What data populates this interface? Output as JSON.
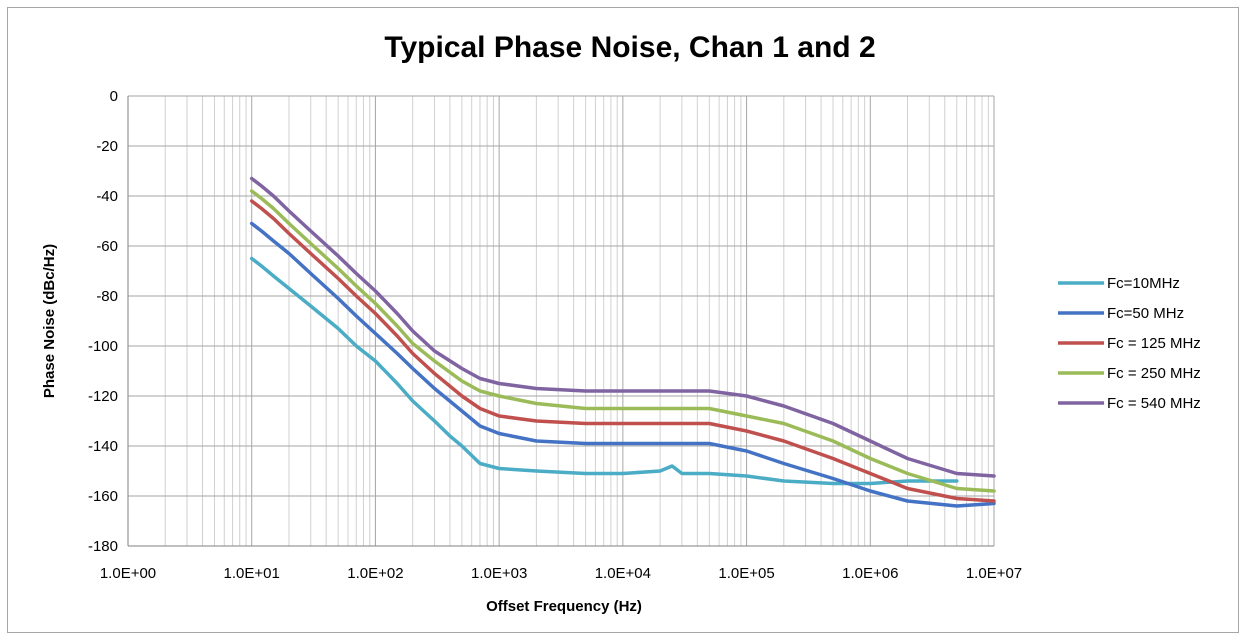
{
  "chart_data": {
    "type": "line",
    "title": "Typical Phase Noise, Chan 1 and 2",
    "xlabel": "Offset Frequency (Hz)",
    "ylabel": "Phase Noise (dBc/Hz)",
    "x_scale": "log",
    "xlim": [
      1,
      10000000
    ],
    "ylim": [
      -180,
      0
    ],
    "x_ticks": [
      "1.0E+00",
      "1.0E+01",
      "1.0E+02",
      "1.0E+03",
      "1.0E+04",
      "1.0E+05",
      "1.0E+06",
      "1.0E+07"
    ],
    "y_ticks": [
      "0",
      "-20",
      "-40",
      "-60",
      "-80",
      "-100",
      "-120",
      "-140",
      "-160",
      "-180"
    ],
    "grid": true,
    "legend_position": "right",
    "series": [
      {
        "name": "Fc=10MHz",
        "color": "#4bacc6",
        "x": [
          10,
          12,
          15,
          20,
          30,
          50,
          70,
          100,
          150,
          200,
          300,
          400,
          500,
          700,
          1000,
          2000,
          5000,
          10000,
          20000,
          25000,
          30000,
          50000,
          100000,
          200000,
          500000,
          1000000,
          2000000,
          5000000
        ],
        "y": [
          -65,
          -68,
          -72,
          -77,
          -84,
          -93,
          -100,
          -106,
          -115,
          -122,
          -130,
          -136,
          -140,
          -147,
          -149,
          -150,
          -151,
          -151,
          -150,
          -148,
          -151,
          -151,
          -152,
          -154,
          -155,
          -155,
          -154,
          -154
        ]
      },
      {
        "name": "Fc=50 MHz",
        "color": "#4472c4",
        "x": [
          10,
          12,
          15,
          20,
          30,
          50,
          70,
          100,
          150,
          200,
          300,
          500,
          700,
          1000,
          2000,
          5000,
          10000,
          20000,
          50000,
          100000,
          200000,
          500000,
          1000000,
          2000000,
          5000000,
          10000000
        ],
        "y": [
          -51,
          -54,
          -58,
          -63,
          -71,
          -81,
          -88,
          -95,
          -103,
          -109,
          -117,
          -126,
          -132,
          -135,
          -138,
          -139,
          -139,
          -139,
          -139,
          -142,
          -147,
          -153,
          -158,
          -162,
          -164,
          -163
        ]
      },
      {
        "name": "Fc = 125 MHz",
        "color": "#c0504d",
        "x": [
          10,
          12,
          15,
          20,
          30,
          50,
          70,
          100,
          150,
          200,
          300,
          500,
          700,
          1000,
          2000,
          5000,
          10000,
          20000,
          50000,
          100000,
          200000,
          500000,
          1000000,
          2000000,
          5000000,
          10000000
        ],
        "y": [
          -42,
          -45,
          -49,
          -55,
          -63,
          -73,
          -80,
          -87,
          -96,
          -103,
          -111,
          -120,
          -125,
          -128,
          -130,
          -131,
          -131,
          -131,
          -131,
          -134,
          -138,
          -145,
          -151,
          -157,
          -161,
          -162
        ]
      },
      {
        "name": "Fc = 250 MHz",
        "color": "#9bbb59",
        "x": [
          10,
          12,
          15,
          20,
          30,
          50,
          70,
          100,
          150,
          200,
          300,
          500,
          700,
          1000,
          2000,
          5000,
          10000,
          20000,
          50000,
          100000,
          200000,
          500000,
          1000000,
          2000000,
          5000000,
          10000000
        ],
        "y": [
          -38,
          -41,
          -45,
          -51,
          -59,
          -69,
          -76,
          -83,
          -92,
          -99,
          -106,
          -114,
          -118,
          -120,
          -123,
          -125,
          -125,
          -125,
          -125,
          -128,
          -131,
          -138,
          -145,
          -151,
          -157,
          -158
        ]
      },
      {
        "name": "Fc = 540 MHz",
        "color": "#8064a2",
        "x": [
          10,
          12,
          15,
          20,
          30,
          50,
          70,
          100,
          150,
          200,
          300,
          500,
          700,
          1000,
          2000,
          5000,
          10000,
          20000,
          50000,
          100000,
          200000,
          500000,
          1000000,
          2000000,
          5000000,
          10000000
        ],
        "y": [
          -33,
          -36,
          -40,
          -46,
          -54,
          -64,
          -71,
          -78,
          -87,
          -94,
          -102,
          -109,
          -113,
          -115,
          -117,
          -118,
          -118,
          -118,
          -118,
          -120,
          -124,
          -131,
          -138,
          -145,
          -151,
          -152
        ]
      }
    ]
  }
}
